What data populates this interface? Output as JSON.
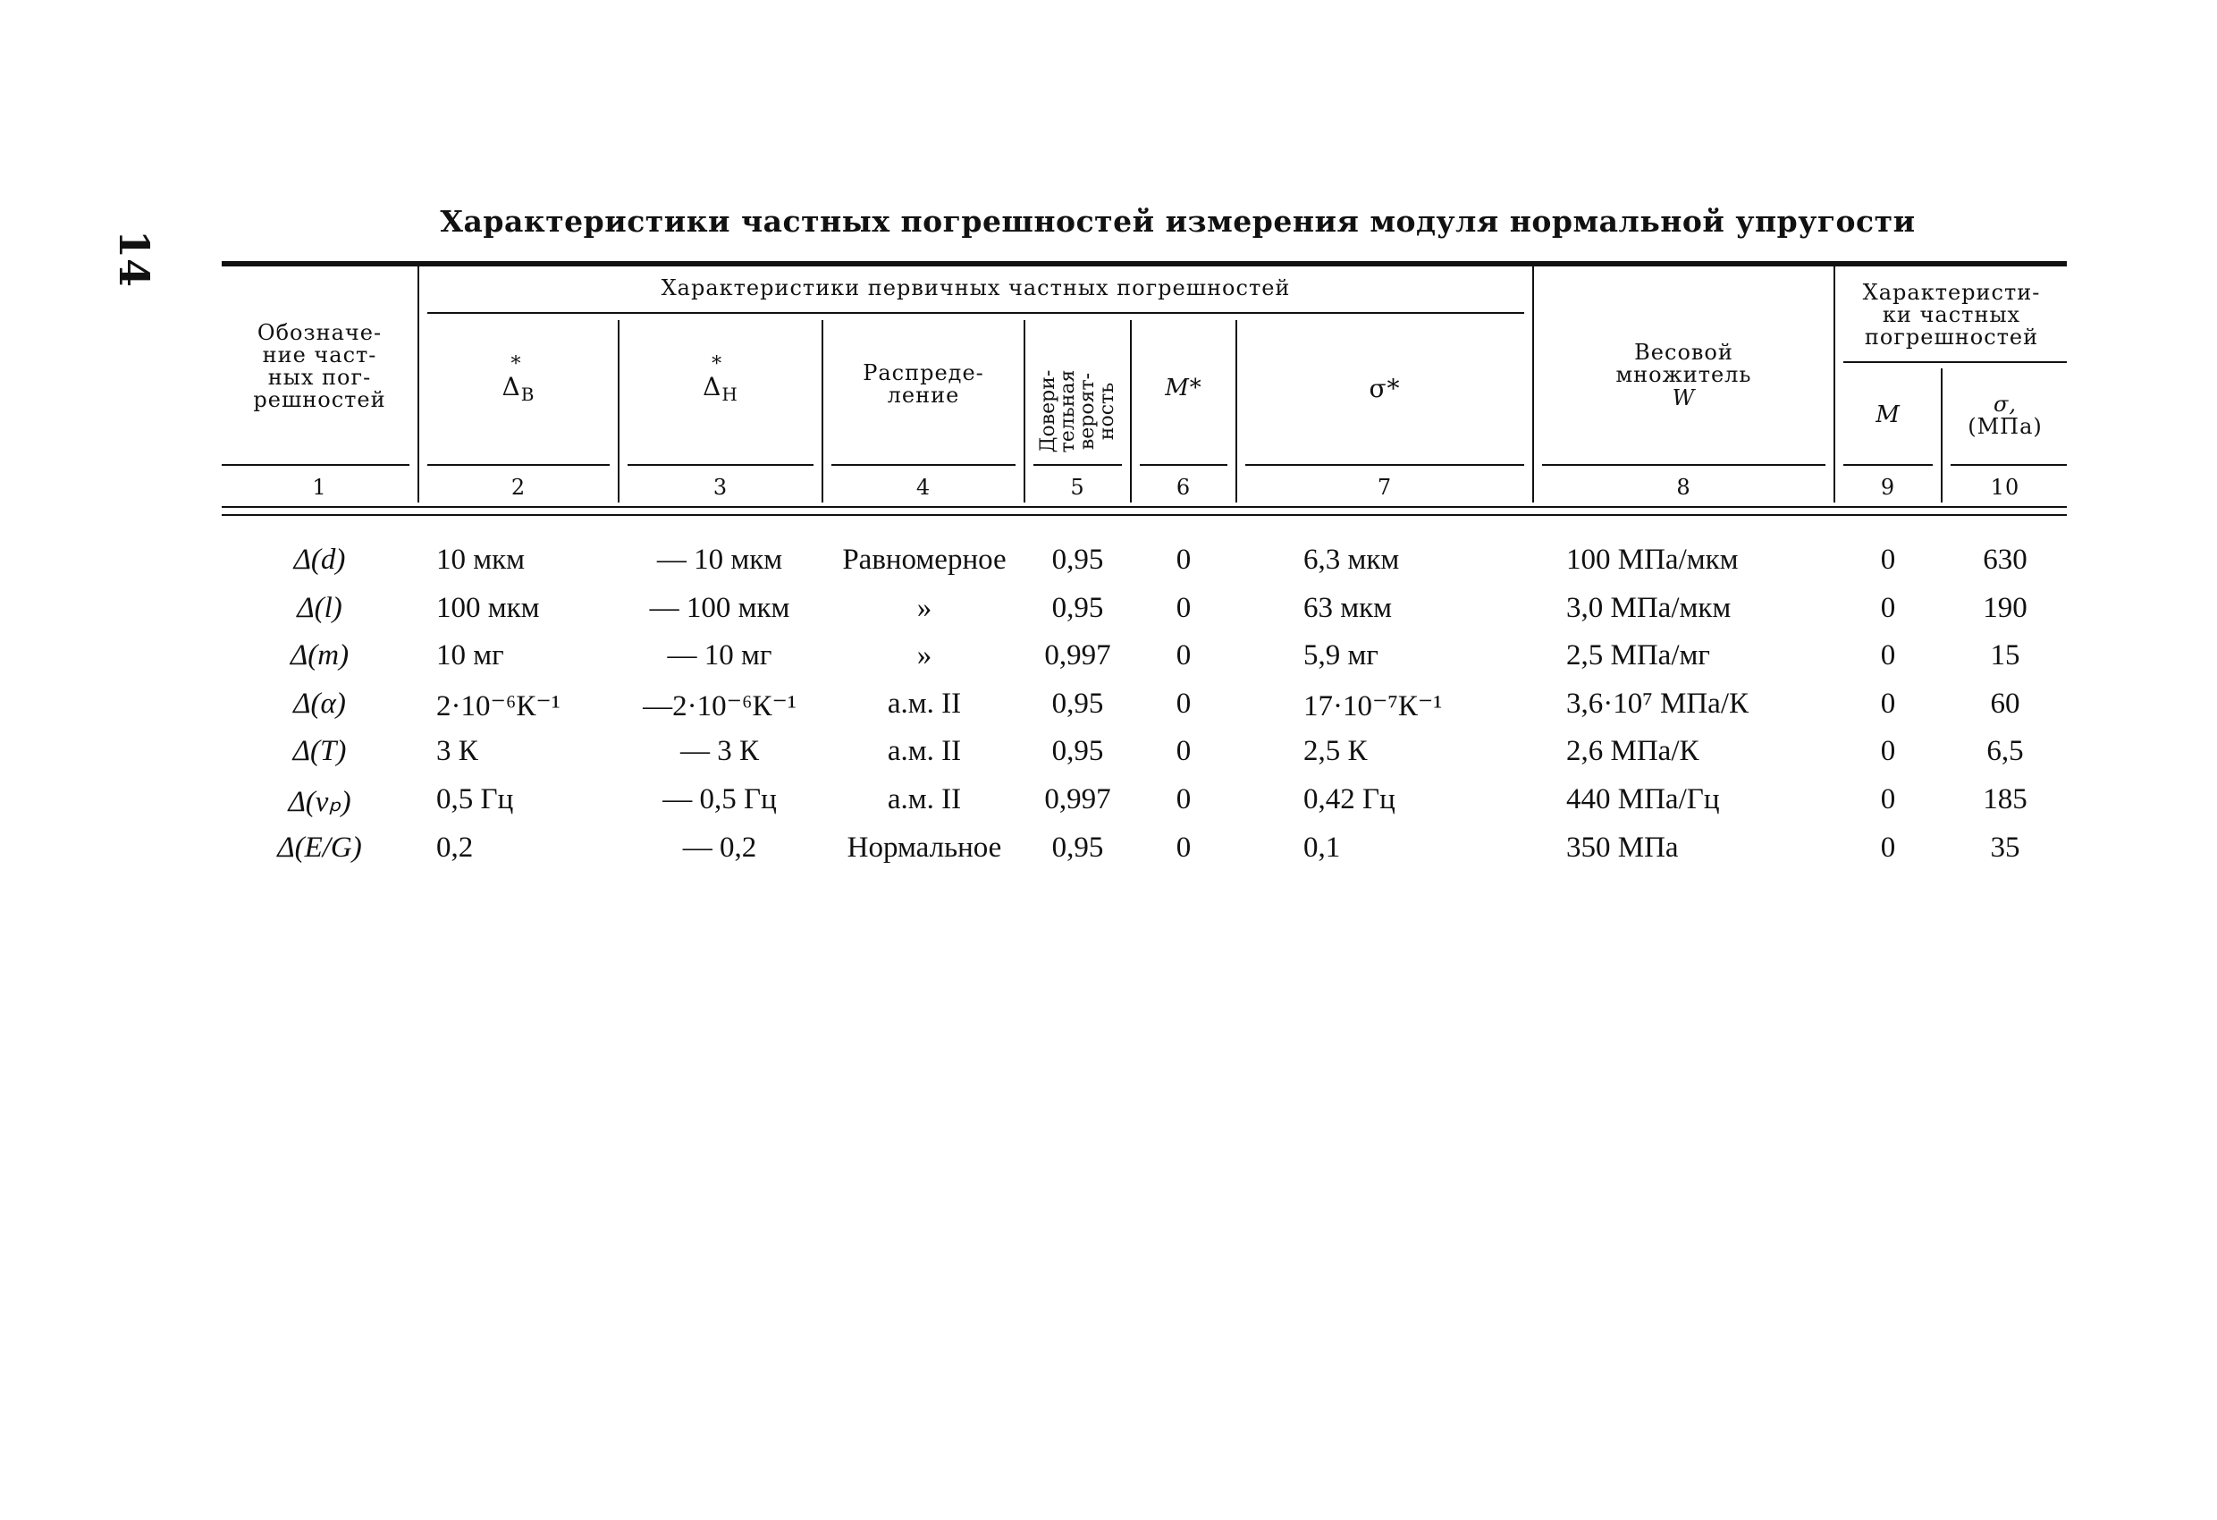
{
  "page_number": "14",
  "title": "Характеристики частных погрешностей измерения модуля нормальной упругости",
  "header": {
    "col1": [
      "Обозначе-",
      "ние част-",
      "ных пог-",
      "решностей"
    ],
    "group_primary": "Характеристики первичных частных погрешностей",
    "col2_sym": "Δ",
    "col2_sub": "В",
    "col2_star": "*",
    "col3_sym": "Δ",
    "col3_sub": "Н",
    "col3_star": "*",
    "col4": [
      "Распреде-",
      "ление"
    ],
    "col5": [
      "Довери-",
      "тельная",
      "вероят-",
      "ность"
    ],
    "col6": "M*",
    "col7": "σ*",
    "col8": [
      "Весовой",
      "множитель",
      "W"
    ],
    "group_partial": [
      "Характеристи-",
      "ки частных",
      "погрешностей"
    ],
    "col9": "M",
    "col10": [
      "σ,",
      "(МПа)"
    ],
    "numbers": [
      "1",
      "2",
      "3",
      "4",
      "5",
      "6",
      "7",
      "8",
      "9",
      "10"
    ]
  },
  "rows": [
    {
      "sym": "Δ(d)",
      "db": "10 мкм",
      "dn": "— 10 мкм",
      "dist": "Равномерное",
      "p": "0,95",
      "m_star": "0",
      "sigma_star": "6,3 мкм",
      "w": "100 МПа/мкм",
      "m": "0",
      "sigma": "630"
    },
    {
      "sym": "Δ(l)",
      "db": "100 мкм",
      "dn": "— 100 мкм",
      "dist": "»",
      "p": "0,95",
      "m_star": "0",
      "sigma_star": "63 мкм",
      "w": "3,0 МПа/мкм",
      "m": "0",
      "sigma": "190"
    },
    {
      "sym": "Δ(m)",
      "db": "10 мг",
      "dn": "— 10 мг",
      "dist": "»",
      "p": "0,997",
      "m_star": "0",
      "sigma_star": "5,9 мг",
      "w": "2,5 МПа/мг",
      "m": "0",
      "sigma": "15"
    },
    {
      "sym": "Δ(α)",
      "db": "2·10⁻⁶К⁻¹",
      "dn": "—2·10⁻⁶К⁻¹",
      "dist": "а.м. II",
      "p": "0,95",
      "m_star": "0",
      "sigma_star": "17·10⁻⁷К⁻¹",
      "w": "3,6·10⁷ МПа/К",
      "m": "0",
      "sigma": "60"
    },
    {
      "sym": "Δ(T)",
      "db": "3 К",
      "dn": "— 3 К",
      "dist": "а.м. II",
      "p": "0,95",
      "m_star": "0",
      "sigma_star": "2,5 К",
      "w": "2,6 МПа/К",
      "m": "0",
      "sigma": "6,5"
    },
    {
      "sym": "Δ(νₚ)",
      "db": "0,5 Гц",
      "dn": "— 0,5 Гц",
      "dist": "а.м. II",
      "p": "0,997",
      "m_star": "0",
      "sigma_star": "0,42 Гц",
      "w": "440 МПа/Гц",
      "m": "0",
      "sigma": "185"
    },
    {
      "sym": "Δ(E/G)",
      "db": "0,2",
      "dn": "— 0,2",
      "dist": "Нормальное",
      "p": "0,95",
      "m_star": "0",
      "sigma_star": "0,1",
      "w": "350 МПа",
      "m": "0",
      "sigma": "35"
    }
  ]
}
